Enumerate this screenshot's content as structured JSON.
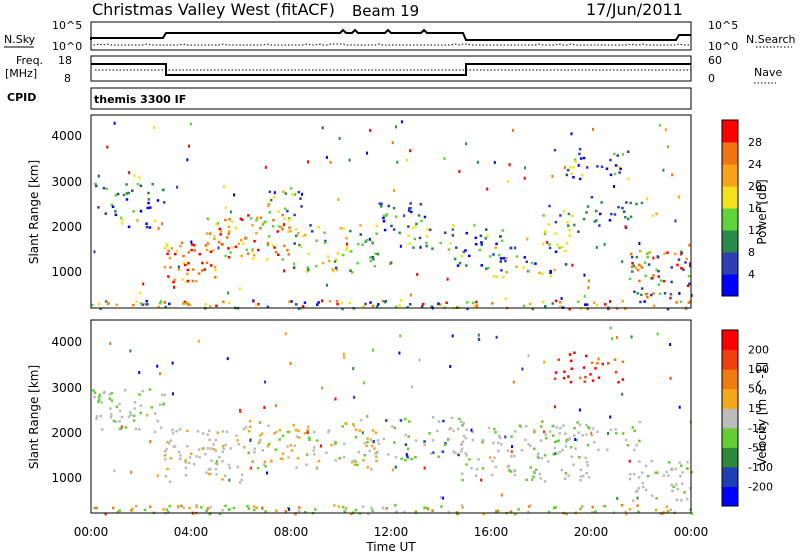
{
  "header": {
    "site_title": "Christmas Valley West (fitACF)",
    "beam": "Beam 19",
    "date": "17/Jun/2011"
  },
  "strips": {
    "nsky": {
      "label": "N.Sky",
      "left_ticks": [
        "10^5",
        "10^0"
      ],
      "right_label": "N.Search",
      "right_ticks": [
        "10^5",
        "10^0"
      ]
    },
    "freq": {
      "label_line1": "Freq.",
      "label_line2": "[MHz]",
      "left_ticks": [
        "18",
        "8"
      ],
      "right_label": "Nave",
      "right_ticks": [
        "60",
        "0"
      ]
    },
    "cpid": {
      "label": "CPID",
      "text": "themis 3300 IF"
    }
  },
  "xaxis": {
    "label": "Time UT",
    "ticks": [
      "00:00",
      "04:00",
      "08:00",
      "12:00",
      "16:00",
      "20:00",
      "00:00"
    ]
  },
  "panels": {
    "power": {
      "ylabel": "Slant Range [km]",
      "yticks": [
        "4000",
        "3000",
        "2000",
        "1000"
      ],
      "colorbar_label": "Power [dB]",
      "colorbar_ticks": [
        "28",
        "24",
        "20",
        "16",
        "12",
        "8",
        "4"
      ],
      "colors": [
        "#0000ff",
        "#2e3fb4",
        "#2a8a4a",
        "#5fd43a",
        "#f3e21b",
        "#f7a21a",
        "#f07411",
        "#ff0000"
      ]
    },
    "velocity": {
      "ylabel": "Slant Range [km]",
      "yticks": [
        "4000",
        "3000",
        "2000",
        "1000"
      ],
      "colorbar_label": "Velocity [m s^-1]",
      "colorbar_ticks": [
        "200",
        "100",
        "50",
        "15",
        "-15",
        "-50",
        "-100",
        "-200"
      ],
      "colors": [
        "#0000ff",
        "#1f3fb7",
        "#2a8a3a",
        "#66cc33",
        "#bbbbbb",
        "#f2a818",
        "#f07a10",
        "#f04010",
        "#ff0000"
      ]
    }
  },
  "chart_data": {
    "type": "heatmap",
    "x": [
      "00:00",
      "04:00",
      "08:00",
      "12:00",
      "16:00",
      "20:00",
      "00:00"
    ],
    "xlabel": "Time UT",
    "ylabel": "Slant Range [km]",
    "ylim": [
      200,
      4500
    ],
    "series": [
      {
        "name": "Power [dB]",
        "colorbar": [
          4,
          8,
          12,
          16,
          20,
          24,
          28
        ]
      },
      {
        "name": "Velocity [m s^-1]",
        "colorbar": [
          -200,
          -100,
          -50,
          -15,
          15,
          50,
          100,
          200
        ]
      }
    ],
    "freq_mhz": [
      {
        "start": "00:00",
        "end": "03:00",
        "value": 18
      },
      {
        "start": "03:00",
        "end": "15:00",
        "value": 10
      },
      {
        "start": "15:00",
        "end": "24:00",
        "value": 18
      }
    ]
  }
}
